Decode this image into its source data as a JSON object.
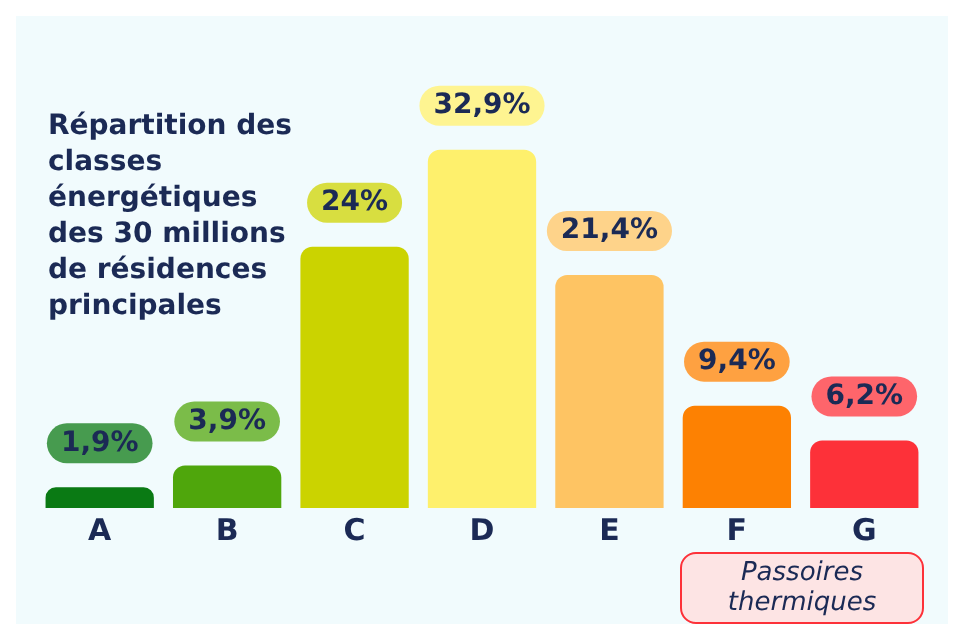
{
  "chart_data": {
    "type": "bar",
    "title": "Répartition des classes énergétiques des 30 millions de résidences principales",
    "categories": [
      "A",
      "B",
      "C",
      "D",
      "E",
      "F",
      "G"
    ],
    "values": [
      1.9,
      3.9,
      24,
      32.9,
      21.4,
      9.4,
      6.2
    ],
    "value_labels": [
      "1,9%",
      "3,9%",
      "24%",
      "32,9%",
      "21,4%",
      "9,4%",
      "6,2%"
    ],
    "colors": [
      "#0a7a14",
      "#4fa60c",
      "#cbd300",
      "#fef06c",
      "#fec463",
      "#fd8102",
      "#fd3139"
    ],
    "annotations": [
      "Passoires thermiques"
    ],
    "legend": false,
    "grid": false
  }
}
